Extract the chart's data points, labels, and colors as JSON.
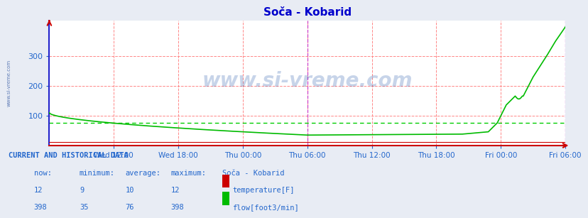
{
  "title": "Soča - Kobarid",
  "title_color": "#0000cc",
  "bg_color": "#e8ecf4",
  "plot_bg_color": "#ffffff",
  "grid_v_color": "#ff8888",
  "grid_h_color": "#ff8888",
  "watermark": "www.si-vreme.com",
  "watermark_color": "#2255aa",
  "watermark_alpha": 0.25,
  "x_tick_labels": [
    "Wed 12:00",
    "Wed 18:00",
    "Thu 00:00",
    "Thu 06:00",
    "Thu 12:00",
    "Thu 18:00",
    "Fri 00:00",
    "Fri 06:00"
  ],
  "x_tick_positions": [
    72,
    144,
    216,
    288,
    360,
    432,
    504,
    576
  ],
  "ylim": [
    0,
    420
  ],
  "y_ticks": [
    100,
    200,
    300
  ],
  "flow_color": "#00bb00",
  "temp_color": "#cc0000",
  "avg_flow": 76,
  "avg_flow_color": "#00cc00",
  "highlight_x1": 288,
  "highlight_x2": 576,
  "highlight_color": "#cc44cc",
  "spine_left_color": "#2222cc",
  "spine_bottom_color": "#cc0000",
  "table_header": "CURRENT AND HISTORICAL DATA",
  "col_headers": [
    "now:",
    "minimum:",
    "average:",
    "maximum:",
    "Soča - Kobarid"
  ],
  "temp_stats": [
    "12",
    "9",
    "10",
    "12"
  ],
  "flow_stats": [
    "398",
    "35",
    "76",
    "398"
  ],
  "temp_label": "temperature[F]",
  "flow_label": "flow[foot3/min]",
  "left_label": "www.si-vreme.com",
  "left_label_color": "#4466aa",
  "font_color": "#2266cc",
  "table_font_color": "#2266cc"
}
